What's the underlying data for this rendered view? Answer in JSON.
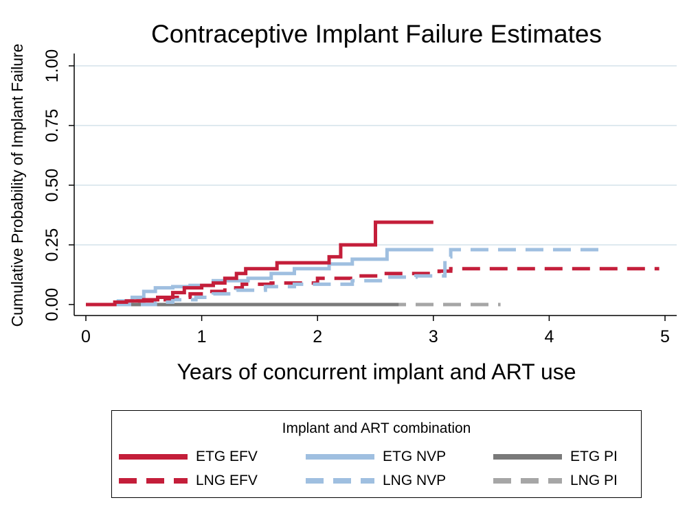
{
  "chart_data": {
    "type": "line",
    "step": true,
    "title": "Contraceptive Implant Failure Estimates",
    "xlabel": "Years of concurrent implant and ART use",
    "ylabel": "Cumulative Probability of Implant Failure",
    "xlim": [
      0,
      5
    ],
    "ylim": [
      0,
      1
    ],
    "xticks": [
      "0",
      "1",
      "2",
      "3",
      "4",
      "5"
    ],
    "yticks": [
      "0.00",
      "0.25",
      "0.50",
      "0.75",
      "1.00"
    ],
    "grid": "horizontal",
    "legend": {
      "title": "Implant and ART combination",
      "position": "bottom"
    },
    "series": [
      {
        "name": "ETG EFV",
        "color": "#c41e3a",
        "dash": false,
        "x": [
          0,
          0.25,
          0.35,
          0.5,
          0.62,
          0.75,
          0.85,
          1.0,
          1.1,
          1.2,
          1.3,
          1.38,
          1.5,
          1.65,
          2.1,
          2.2,
          2.5,
          3.0
        ],
        "y": [
          0,
          0.01,
          0.015,
          0.02,
          0.03,
          0.05,
          0.07,
          0.08,
          0.09,
          0.11,
          0.13,
          0.15,
          0.15,
          0.175,
          0.2,
          0.25,
          0.345,
          0.345
        ]
      },
      {
        "name": "LNG EFV",
        "color": "#c41e3a",
        "dash": true,
        "x": [
          0,
          0.3,
          0.45,
          0.6,
          0.75,
          0.9,
          1.05,
          1.2,
          1.35,
          1.6,
          2.0,
          2.3,
          2.55,
          3.05,
          3.15,
          4.95
        ],
        "y": [
          0,
          0.01,
          0.015,
          0.02,
          0.03,
          0.045,
          0.055,
          0.07,
          0.085,
          0.09,
          0.11,
          0.12,
          0.13,
          0.14,
          0.15,
          0.15
        ]
      },
      {
        "name": "ETG NVP",
        "color": "#9fbfe0",
        "dash": false,
        "x": [
          0,
          0.28,
          0.4,
          0.5,
          0.6,
          0.75,
          0.9,
          1.1,
          1.4,
          1.6,
          1.8,
          2.1,
          2.3,
          2.6,
          3.0
        ],
        "y": [
          0,
          0.015,
          0.03,
          0.055,
          0.07,
          0.075,
          0.08,
          0.1,
          0.11,
          0.13,
          0.15,
          0.17,
          0.19,
          0.23,
          0.23
        ]
      },
      {
        "name": "LNG NVP",
        "color": "#9fbfe0",
        "dash": true,
        "x": [
          0,
          0.6,
          0.75,
          0.95,
          1.1,
          1.3,
          1.55,
          1.8,
          2.3,
          2.6,
          2.85,
          3.1,
          3.15,
          4.45
        ],
        "y": [
          0,
          0.01,
          0.02,
          0.03,
          0.045,
          0.06,
          0.075,
          0.085,
          0.1,
          0.115,
          0.12,
          0.2,
          0.23,
          0.23
        ]
      },
      {
        "name": "ETG PI",
        "color": "#7a7a7a",
        "dash": false,
        "x": [
          0,
          2.7
        ],
        "y": [
          0,
          0
        ]
      },
      {
        "name": "LNG PI",
        "color": "#a6a6a6",
        "dash": true,
        "x": [
          0,
          3.58
        ],
        "y": [
          0,
          0
        ]
      }
    ]
  }
}
